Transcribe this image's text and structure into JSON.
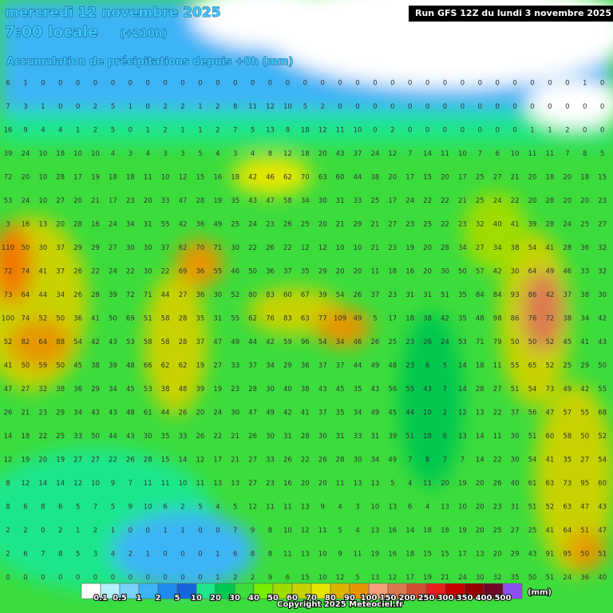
{
  "header": {
    "date": "mercredi 12 novembre 2025",
    "time": "7:00 locale",
    "lead": "(+210h)",
    "subtitle": "Accumulation de précipitations depuis +0h (mm)",
    "run": "Run GFS 12Z du lundi 3 novembre 2025"
  },
  "grid": [
    [
      6,
      1,
      0,
      0,
      0,
      0,
      0,
      0,
      0,
      0,
      0,
      0,
      0,
      0,
      0,
      0,
      0,
      0,
      0,
      0,
      0,
      0,
      0,
      0,
      0,
      0,
      0,
      0,
      0,
      0,
      0,
      0,
      0,
      1,
      0
    ],
    [
      7,
      3,
      1,
      0,
      0,
      2,
      5,
      1,
      0,
      2,
      2,
      1,
      2,
      8,
      11,
      12,
      10,
      5,
      2,
      0,
      0,
      0,
      0,
      0,
      0,
      0,
      0,
      0,
      0,
      0,
      0,
      0,
      0,
      0,
      0
    ],
    [
      16,
      9,
      4,
      4,
      1,
      2,
      5,
      0,
      1,
      2,
      1,
      1,
      2,
      7,
      5,
      13,
      8,
      18,
      12,
      11,
      10,
      0,
      2,
      0,
      0,
      0,
      0,
      0,
      0,
      0,
      1,
      1,
      2,
      0,
      0
    ],
    [
      39,
      24,
      10,
      18,
      10,
      10,
      4,
      3,
      4,
      3,
      3,
      5,
      4,
      3,
      4,
      8,
      12,
      18,
      20,
      43,
      37,
      24,
      12,
      7,
      14,
      11,
      10,
      7,
      6,
      10,
      11,
      11,
      7,
      8,
      5
    ],
    [
      72,
      20,
      10,
      28,
      17,
      19,
      18,
      18,
      11,
      10,
      12,
      15,
      16,
      18,
      42,
      46,
      62,
      70,
      63,
      60,
      44,
      38,
      20,
      17,
      15,
      20,
      17,
      25,
      27,
      21,
      20,
      18,
      20,
      18,
      15
    ],
    [
      53,
      24,
      10,
      27,
      20,
      21,
      17,
      23,
      20,
      33,
      47,
      28,
      19,
      35,
      43,
      47,
      58,
      34,
      30,
      31,
      33,
      25,
      17,
      24,
      22,
      22,
      21,
      25,
      24,
      22,
      20,
      28,
      20,
      20,
      23
    ],
    [
      3,
      16,
      13,
      20,
      28,
      16,
      24,
      34,
      31,
      55,
      42,
      36,
      49,
      25,
      24,
      23,
      26,
      25,
      20,
      21,
      29,
      21,
      27,
      23,
      25,
      22,
      23,
      32,
      40,
      41,
      39,
      28,
      24,
      25,
      27
    ],
    [
      110,
      50,
      30,
      37,
      29,
      29,
      27,
      30,
      30,
      37,
      62,
      70,
      71,
      30,
      22,
      26,
      22,
      12,
      12,
      10,
      10,
      21,
      23,
      19,
      20,
      28,
      34,
      27,
      34,
      38,
      54,
      41,
      28,
      36,
      32
    ],
    [
      72,
      74,
      41,
      37,
      26,
      22,
      24,
      22,
      30,
      22,
      69,
      36,
      55,
      46,
      50,
      36,
      37,
      35,
      29,
      20,
      20,
      11,
      18,
      16,
      20,
      30,
      50,
      57,
      42,
      30,
      64,
      49,
      46,
      33,
      32
    ],
    [
      73,
      64,
      44,
      34,
      26,
      28,
      39,
      72,
      71,
      44,
      27,
      36,
      30,
      52,
      80,
      83,
      60,
      67,
      39,
      54,
      26,
      37,
      23,
      31,
      31,
      51,
      35,
      84,
      84,
      93,
      86,
      42,
      37,
      38,
      30
    ],
    [
      100,
      74,
      52,
      50,
      36,
      41,
      50,
      69,
      51,
      58,
      28,
      35,
      31,
      55,
      62,
      76,
      83,
      63,
      77,
      109,
      49,
      5,
      17,
      18,
      38,
      42,
      35,
      48,
      98,
      86,
      76,
      72,
      38,
      34,
      42
    ],
    [
      52,
      82,
      64,
      88,
      54,
      42,
      43,
      53,
      58,
      58,
      28,
      37,
      47,
      49,
      44,
      42,
      59,
      96,
      54,
      34,
      46,
      26,
      25,
      23,
      26,
      24,
      53,
      71,
      79,
      50,
      50,
      52,
      45,
      41,
      43
    ],
    [
      41,
      50,
      59,
      50,
      45,
      38,
      39,
      48,
      66,
      62,
      62,
      19,
      27,
      33,
      37,
      34,
      29,
      36,
      37,
      37,
      44,
      49,
      48,
      23,
      6,
      5,
      14,
      18,
      11,
      55,
      65,
      52,
      25,
      29,
      50
    ],
    [
      47,
      27,
      32,
      38,
      36,
      29,
      34,
      45,
      53,
      38,
      48,
      39,
      19,
      23,
      28,
      30,
      40,
      38,
      43,
      45,
      35,
      43,
      56,
      55,
      43,
      7,
      14,
      28,
      27,
      51,
      54,
      73,
      49,
      42,
      55
    ],
    [
      26,
      21,
      23,
      29,
      34,
      43,
      43,
      48,
      61,
      44,
      26,
      20,
      24,
      30,
      47,
      49,
      42,
      41,
      37,
      35,
      34,
      49,
      45,
      44,
      10,
      2,
      12,
      13,
      22,
      37,
      56,
      47,
      57,
      55,
      68
    ],
    [
      14,
      18,
      22,
      25,
      33,
      50,
      44,
      43,
      30,
      35,
      33,
      26,
      22,
      21,
      26,
      30,
      31,
      28,
      30,
      31,
      33,
      31,
      39,
      51,
      18,
      6,
      13,
      14,
      11,
      30,
      51,
      60,
      58,
      50,
      52
    ],
    [
      12,
      19,
      20,
      19,
      27,
      27,
      22,
      26,
      28,
      15,
      14,
      12,
      17,
      21,
      27,
      33,
      26,
      22,
      26,
      28,
      30,
      34,
      49,
      7,
      8,
      7,
      7,
      14,
      22,
      30,
      54,
      41,
      35,
      27,
      54
    ],
    [
      8,
      12,
      14,
      14,
      12,
      10,
      9,
      7,
      11,
      11,
      10,
      11,
      13,
      13,
      27,
      23,
      16,
      20,
      20,
      11,
      13,
      13,
      5,
      4,
      11,
      20,
      19,
      20,
      26,
      40,
      61,
      63,
      73,
      95,
      60
    ],
    [
      8,
      6,
      8,
      6,
      5,
      7,
      5,
      9,
      10,
      6,
      2,
      5,
      4,
      5,
      12,
      11,
      11,
      13,
      9,
      4,
      3,
      10,
      13,
      6,
      4,
      13,
      10,
      20,
      23,
      31,
      51,
      52,
      63,
      47,
      43
    ],
    [
      2,
      2,
      0,
      2,
      1,
      2,
      1,
      0,
      0,
      1,
      1,
      0,
      0,
      7,
      9,
      8,
      10,
      12,
      11,
      5,
      4,
      13,
      16,
      14,
      18,
      18,
      19,
      20,
      25,
      27,
      25,
      41,
      64,
      51,
      47
    ],
    [
      2,
      6,
      7,
      8,
      5,
      3,
      4,
      2,
      1,
      0,
      0,
      0,
      1,
      6,
      8,
      8,
      11,
      13,
      10,
      9,
      11,
      19,
      16,
      18,
      15,
      15,
      17,
      13,
      20,
      29,
      43,
      91,
      95,
      50,
      51
    ],
    [
      0,
      0,
      0,
      0,
      0,
      0,
      0,
      0,
      0,
      0,
      0,
      0,
      1,
      2,
      2,
      9,
      6,
      15,
      10,
      12,
      5,
      13,
      12,
      17,
      19,
      21,
      24,
      30,
      32,
      35,
      50,
      51,
      24,
      36,
      40
    ]
  ],
  "legend": {
    "labels": [
      "0.1",
      "0.5",
      "1",
      "2",
      "5",
      "10",
      "20",
      "30",
      "40",
      "50",
      "60",
      "70",
      "80",
      "90",
      "100",
      "150",
      "200",
      "250",
      "300",
      "350",
      "400",
      "500"
    ],
    "colors": [
      "#ffffff",
      "#b4f0fa",
      "#78d2fa",
      "#3cb4f5",
      "#1e8cf0",
      "#1464dc",
      "#1ee68c",
      "#00c850",
      "#3cdc3c",
      "#78f000",
      "#a0dc00",
      "#c8d200",
      "#e6e600",
      "#dcb400",
      "#e69600",
      "#f5a078",
      "#dc7850",
      "#d25032",
      "#e61e1e",
      "#c80000",
      "#960000",
      "#6e0a28",
      "#8c50f0"
    ],
    "unit": "(mm)"
  },
  "copyright": "Copyright 2025 Meteociel.fr"
}
